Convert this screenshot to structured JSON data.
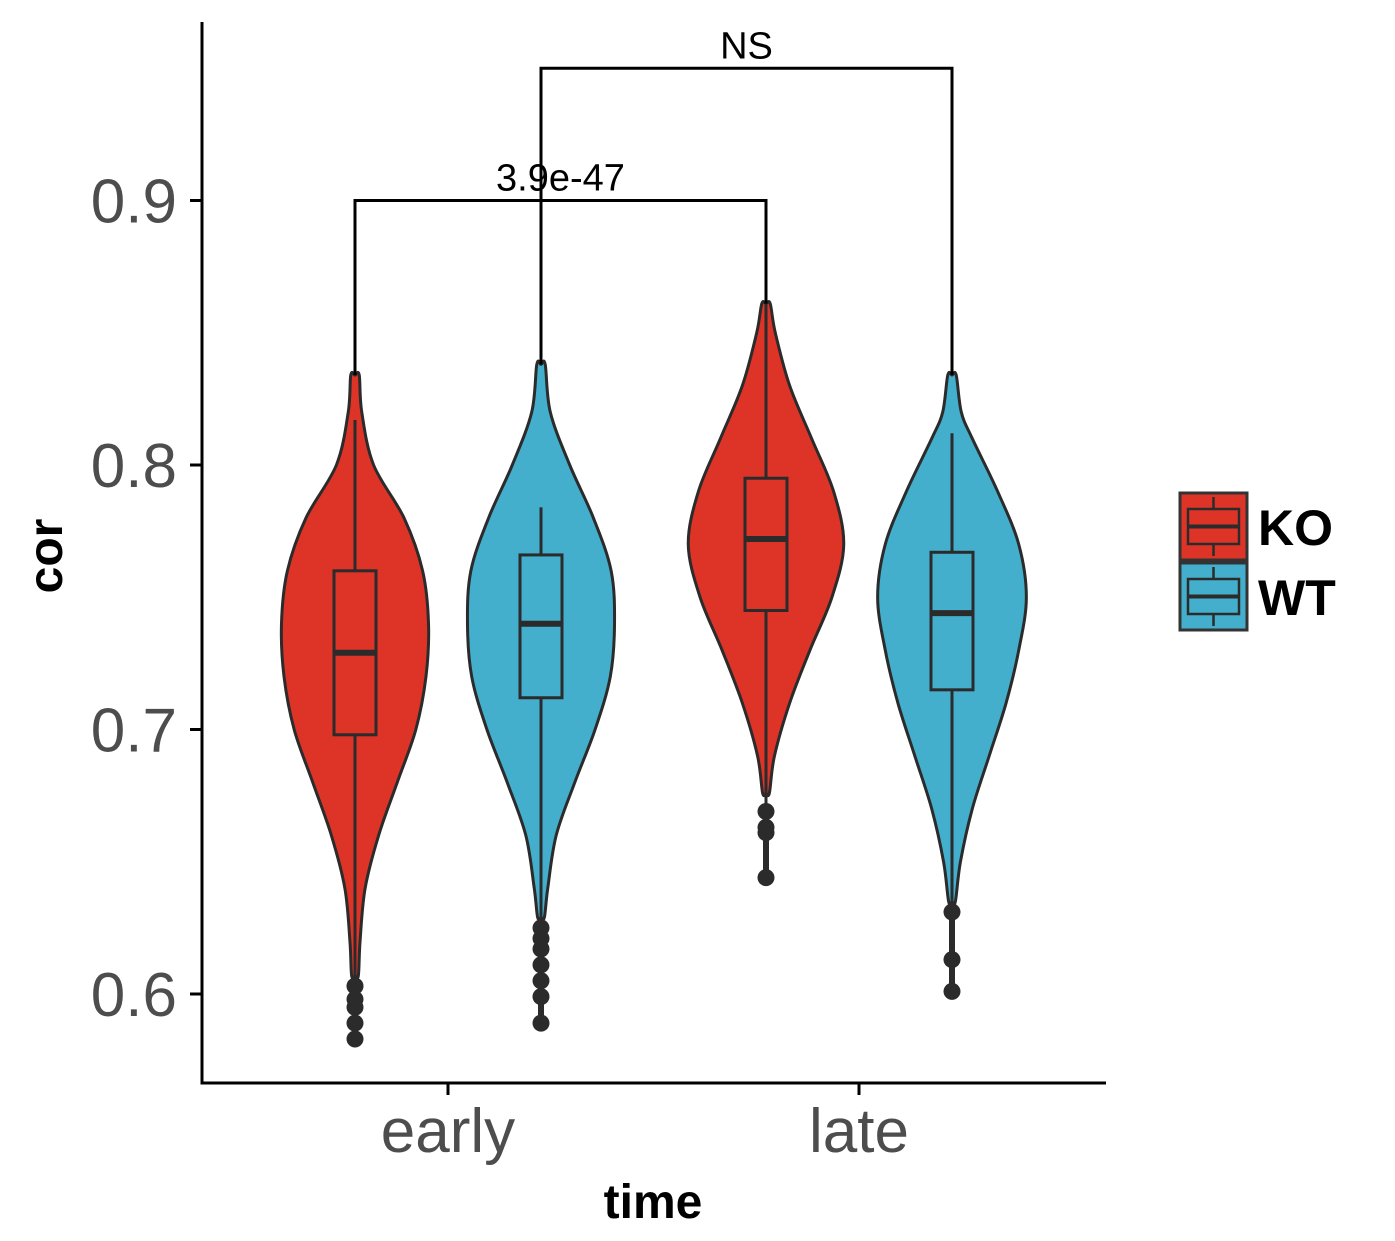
{
  "chart_data": {
    "type": "violin",
    "title": "",
    "xlabel": "time",
    "ylabel": "cor",
    "ylim": [
      0.566,
      0.962
    ],
    "yticks": [
      "0.6",
      "0.7",
      "0.8",
      "0.9"
    ],
    "categories": [
      "early",
      "late"
    ],
    "legend": {
      "position": "right",
      "entries": [
        {
          "label": "KO",
          "color": "#DE3428"
        },
        {
          "label": "WT",
          "color": "#43AFCC"
        }
      ]
    },
    "groups": [
      {
        "category": "early",
        "series": "KO",
        "min": 0.607,
        "q1": 0.698,
        "median": 0.729,
        "q3": 0.76,
        "max": 0.834,
        "whisker_low": 0.603,
        "whisker_high": 0.817,
        "density": [
          [
            0.607,
            0.2
          ],
          [
            0.62,
            0.3
          ],
          [
            0.64,
            0.6
          ],
          [
            0.66,
            1.4
          ],
          [
            0.68,
            2.5
          ],
          [
            0.7,
            3.6
          ],
          [
            0.72,
            4.2
          ],
          [
            0.74,
            4.35
          ],
          [
            0.76,
            4.0
          ],
          [
            0.78,
            2.9
          ],
          [
            0.8,
            1.1
          ],
          [
            0.82,
            0.4
          ],
          [
            0.834,
            0.25
          ]
        ],
        "outliers": [
          0.603,
          0.598,
          0.595,
          0.589,
          0.583
        ]
      },
      {
        "category": "early",
        "series": "WT",
        "min": 0.629,
        "q1": 0.712,
        "median": 0.74,
        "q3": 0.766,
        "max": 0.838,
        "whisker_low": 0.629,
        "whisker_high": 0.784,
        "density": [
          [
            0.629,
            0.2
          ],
          [
            0.64,
            0.4
          ],
          [
            0.66,
            0.9
          ],
          [
            0.68,
            2.0
          ],
          [
            0.7,
            3.2
          ],
          [
            0.72,
            4.1
          ],
          [
            0.74,
            4.35
          ],
          [
            0.76,
            4.15
          ],
          [
            0.78,
            3.1
          ],
          [
            0.8,
            1.7
          ],
          [
            0.82,
            0.55
          ],
          [
            0.838,
            0.25
          ]
        ],
        "outliers": [
          0.625,
          0.621,
          0.617,
          0.611,
          0.605,
          0.599,
          0.589
        ]
      },
      {
        "category": "late",
        "series": "KO",
        "min": 0.676,
        "q1": 0.745,
        "median": 0.772,
        "q3": 0.795,
        "max": 0.861,
        "whisker_low": 0.668,
        "whisker_high": 0.861,
        "density": [
          [
            0.676,
            0.2
          ],
          [
            0.69,
            0.5
          ],
          [
            0.71,
            1.4
          ],
          [
            0.73,
            2.6
          ],
          [
            0.75,
            3.9
          ],
          [
            0.77,
            4.6
          ],
          [
            0.79,
            4.0
          ],
          [
            0.81,
            2.7
          ],
          [
            0.83,
            1.4
          ],
          [
            0.85,
            0.55
          ],
          [
            0.861,
            0.25
          ]
        ],
        "outliers": [
          0.669,
          0.663,
          0.661,
          0.644
        ]
      },
      {
        "category": "late",
        "series": "WT",
        "min": 0.635,
        "q1": 0.715,
        "median": 0.744,
        "q3": 0.767,
        "max": 0.834,
        "whisker_low": 0.635,
        "whisker_high": 0.812,
        "density": [
          [
            0.635,
            0.2
          ],
          [
            0.65,
            0.5
          ],
          [
            0.67,
            1.2
          ],
          [
            0.69,
            2.2
          ],
          [
            0.71,
            3.2
          ],
          [
            0.73,
            3.95
          ],
          [
            0.75,
            4.4
          ],
          [
            0.77,
            3.95
          ],
          [
            0.79,
            2.7
          ],
          [
            0.81,
            1.2
          ],
          [
            0.82,
            0.55
          ],
          [
            0.834,
            0.25
          ]
        ],
        "outliers": [
          0.631,
          0.613,
          0.601
        ]
      }
    ],
    "annotations": [
      {
        "label": "3.9e-47",
        "from": "early-KO",
        "to": "late-KO",
        "y": 0.9,
        "drop_to": [
          0.834,
          0.861
        ]
      },
      {
        "label": "NS",
        "from": "early-WT",
        "to": "late-WT",
        "y": 0.95,
        "drop_to": [
          0.838,
          0.834
        ]
      }
    ]
  },
  "colors": {
    "KO": "#DE3428",
    "WT": "#43AFCC",
    "outline": "#2b2b2b",
    "axis": "#000000"
  }
}
